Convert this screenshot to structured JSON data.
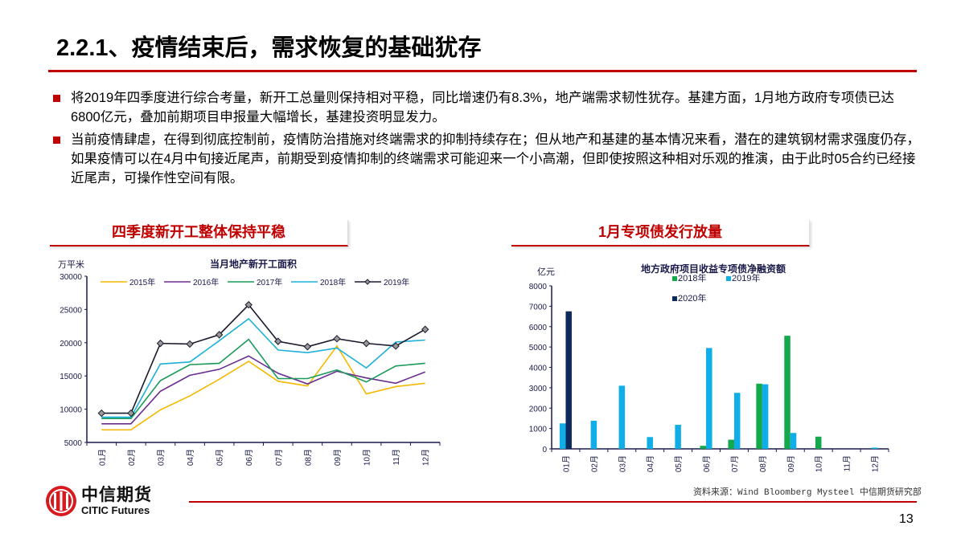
{
  "title": "2.2.1、疫情结束后，需求恢复的基础犹存",
  "bullets": [
    "将2019年四季度进行综合考量，新开工总量则保持相对平稳，同比增速仍有8.3%，地产端需求韧性犹存。基建方面，1月地方政府专项债已达6800亿元，叠加前期项目申报量大幅增长，基建投资明显发力。",
    "当前疫情肆虐，在得到彻底控制前，疫情防治措施对终端需求的抑制持续存在；但从地产和基建的基本情况来看，潜在的建筑钢材需求强度仍存，如果疫情可以在4月中旬接近尾声，前期受到疫情抑制的终端需求可能迎来一个小高潮，但即使按照这种相对乐观的推演，由于此时05合约已经接近尾声，可操作性空间有限。"
  ],
  "section_left": "四季度新开工整体保持平稳",
  "section_right": "1月专项债发行放量",
  "accent_color": "#c00000",
  "chart_data": [
    {
      "type": "line",
      "title": "当月地产新开工面积",
      "ylabel": "万平米",
      "ylim": [
        5000,
        30000
      ],
      "yticks": [
        5000,
        10000,
        15000,
        20000,
        25000,
        30000
      ],
      "categories": [
        "01月",
        "02月",
        "03月",
        "04月",
        "05月",
        "06月",
        "07月",
        "08月",
        "09月",
        "10月",
        "11月",
        "12月"
      ],
      "legend": "top",
      "series": [
        {
          "name": "2015年",
          "color": "#f5b800",
          "values": [
            6900,
            6900,
            9900,
            12000,
            14500,
            17200,
            14200,
            13500,
            19500,
            12300,
            13400,
            13900
          ]
        },
        {
          "name": "2016年",
          "color": "#6a2c8f",
          "values": [
            7800,
            7800,
            12700,
            15100,
            16000,
            18000,
            15400,
            13800,
            15700,
            14700,
            13900,
            15600
          ]
        },
        {
          "name": "2017年",
          "color": "#1a9a5a",
          "values": [
            8600,
            8600,
            14300,
            16700,
            16900,
            20500,
            14600,
            14600,
            15900,
            14100,
            16500,
            16900
          ]
        },
        {
          "name": "2018年",
          "color": "#1cb0d8",
          "values": [
            8800,
            8800,
            16800,
            17100,
            20300,
            23600,
            18900,
            18500,
            19200,
            16200,
            20100,
            20400
          ]
        },
        {
          "name": "2019年",
          "color": "#1a1a2e",
          "marker": "diamond",
          "values": [
            9400,
            9400,
            19900,
            19800,
            21200,
            25700,
            20200,
            19400,
            20600,
            19900,
            19500,
            22000
          ]
        }
      ]
    },
    {
      "type": "bar",
      "title": "地方政府项目收益专项债净融资额",
      "ylabel": "亿元",
      "ylim": [
        0,
        8000
      ],
      "yticks": [
        0,
        1000,
        2000,
        3000,
        4000,
        5000,
        6000,
        7000,
        8000
      ],
      "categories": [
        "01月",
        "02月",
        "03月",
        "04月",
        "05月",
        "06月",
        "07月",
        "08月",
        "09月",
        "10月",
        "11月",
        "12月"
      ],
      "legend": "top",
      "series": [
        {
          "name": "2018年",
          "color": "#13a84a",
          "values": [
            0,
            0,
            0,
            0,
            0,
            150,
            450,
            3200,
            5550,
            600,
            0,
            0
          ]
        },
        {
          "name": "2019年",
          "color": "#10aee8",
          "values": [
            1250,
            1380,
            3100,
            580,
            1180,
            4950,
            2750,
            3170,
            780,
            0,
            0,
            60
          ]
        },
        {
          "name": "2020年",
          "color": "#0c2a5c",
          "values": [
            6750,
            0,
            0,
            0,
            0,
            0,
            0,
            0,
            0,
            0,
            0,
            0
          ]
        }
      ]
    }
  ],
  "source": "资料来源：Wind Bloomberg Mysteel 中信期货研究部",
  "logo": {
    "cn": "中信期货",
    "en": "CITIC Futures"
  },
  "page_number": "13"
}
